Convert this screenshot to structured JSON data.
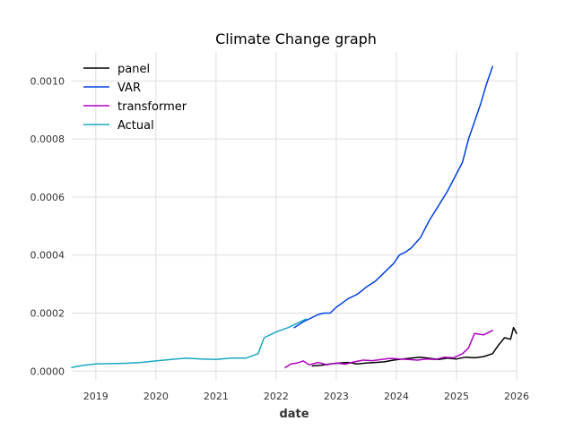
{
  "chart_data": {
    "type": "line",
    "title": "Climate Change graph",
    "xlabel": "date",
    "ylabel": "",
    "x_axis": "date (years)",
    "xlim": [
      2018.6,
      2026.0
    ],
    "ylim": [
      -3e-05,
      0.0011
    ],
    "grid": true,
    "legend_position": "top-left",
    "x_ticks": [
      {
        "value": 2019,
        "label": "2019"
      },
      {
        "value": 2020,
        "label": "2020"
      },
      {
        "value": 2021,
        "label": "2021"
      },
      {
        "value": 2022,
        "label": "2022"
      },
      {
        "value": 2023,
        "label": "2023"
      },
      {
        "value": 2024,
        "label": "2024"
      },
      {
        "value": 2025,
        "label": "2025"
      },
      {
        "value": 2026,
        "label": "2026"
      }
    ],
    "y_ticks": [
      {
        "value": 0.0,
        "label": "0.0000"
      },
      {
        "value": 0.0002,
        "label": "0.0002"
      },
      {
        "value": 0.0004,
        "label": "0.0004"
      },
      {
        "value": 0.0006,
        "label": "0.0006"
      },
      {
        "value": 0.0008,
        "label": "0.0008"
      },
      {
        "value": 0.001,
        "label": "0.0010"
      }
    ],
    "series": [
      {
        "name": "panel",
        "color": "#000000",
        "x": [
          2022.6,
          2022.75,
          2022.9,
          2023.05,
          2023.2,
          2023.35,
          2023.5,
          2023.65,
          2023.8,
          2023.95,
          2024.1,
          2024.25,
          2024.4,
          2024.55,
          2024.7,
          2024.85,
          2025.0,
          2025.15,
          2025.3,
          2025.45,
          2025.6,
          2025.7,
          2025.8,
          2025.9,
          2025.95,
          2026.0
        ],
        "y": [
          1.8e-05,
          2e-05,
          2.5e-05,
          2.8e-05,
          3e-05,
          2.5e-05,
          2.8e-05,
          3e-05,
          3.2e-05,
          3.8e-05,
          4.2e-05,
          4.5e-05,
          4.8e-05,
          4.4e-05,
          4e-05,
          4.5e-05,
          4.2e-05,
          4.8e-05,
          4.6e-05,
          5e-05,
          6e-05,
          9e-05,
          0.000115,
          0.00011,
          0.00015,
          0.00013
        ]
      },
      {
        "name": "VAR",
        "color": "#0040e0",
        "x": [
          2022.3,
          2022.45,
          2022.55,
          2022.7,
          2022.8,
          2022.9,
          2023.0,
          2023.1,
          2023.2,
          2023.35,
          2023.5,
          2023.65,
          2023.8,
          2023.95,
          2024.05,
          2024.15,
          2024.25,
          2024.4,
          2024.55,
          2024.7,
          2024.85,
          2025.0,
          2025.1,
          2025.2,
          2025.3,
          2025.4,
          2025.5,
          2025.6
        ],
        "y": [
          0.00015,
          0.00017,
          0.00018,
          0.000195,
          0.0002,
          0.0002,
          0.00022,
          0.000235,
          0.00025,
          0.000265,
          0.00029,
          0.00031,
          0.00034,
          0.00037,
          0.0004,
          0.00041,
          0.000425,
          0.00046,
          0.00052,
          0.00057,
          0.00062,
          0.00068,
          0.00072,
          0.0008,
          0.00086,
          0.00092,
          0.00099,
          0.00105
        ]
      },
      {
        "name": "transformer",
        "color": "#b000c0",
        "x": [
          2022.15,
          2022.25,
          2022.35,
          2022.45,
          2022.55,
          2022.7,
          2022.85,
          2023.0,
          2023.15,
          2023.3,
          2023.45,
          2023.6,
          2023.75,
          2023.9,
          2024.05,
          2024.2,
          2024.35,
          2024.5,
          2024.65,
          2024.8,
          2024.95,
          2025.1,
          2025.2,
          2025.3,
          2025.45,
          2025.6
        ],
        "y": [
          1.2e-05,
          2.5e-05,
          2.8e-05,
          3.5e-05,
          2.2e-05,
          3e-05,
          2.2e-05,
          2.8e-05,
          2.4e-05,
          3.2e-05,
          3.8e-05,
          3.6e-05,
          4e-05,
          4.4e-05,
          4.2e-05,
          4e-05,
          3.8e-05,
          4.2e-05,
          4e-05,
          4.8e-05,
          4.6e-05,
          6e-05,
          8e-05,
          0.00013,
          0.000125,
          0.00014
        ]
      },
      {
        "name": "Actual",
        "color": "#18a8c0",
        "x": [
          2018.6,
          2018.8,
          2019.0,
          2019.25,
          2019.5,
          2019.75,
          2020.0,
          2020.25,
          2020.5,
          2020.75,
          2021.0,
          2021.25,
          2021.5,
          2021.7,
          2021.8,
          2022.0,
          2022.2,
          2022.35,
          2022.5
        ],
        "y": [
          1.3e-05,
          2e-05,
          2.5e-05,
          2.6e-05,
          2.7e-05,
          3e-05,
          3.5e-05,
          4e-05,
          4.5e-05,
          4.2e-05,
          4e-05,
          4.5e-05,
          4.5e-05,
          6e-05,
          0.000115,
          0.000135,
          0.00015,
          0.000165,
          0.00018
        ]
      }
    ]
  }
}
